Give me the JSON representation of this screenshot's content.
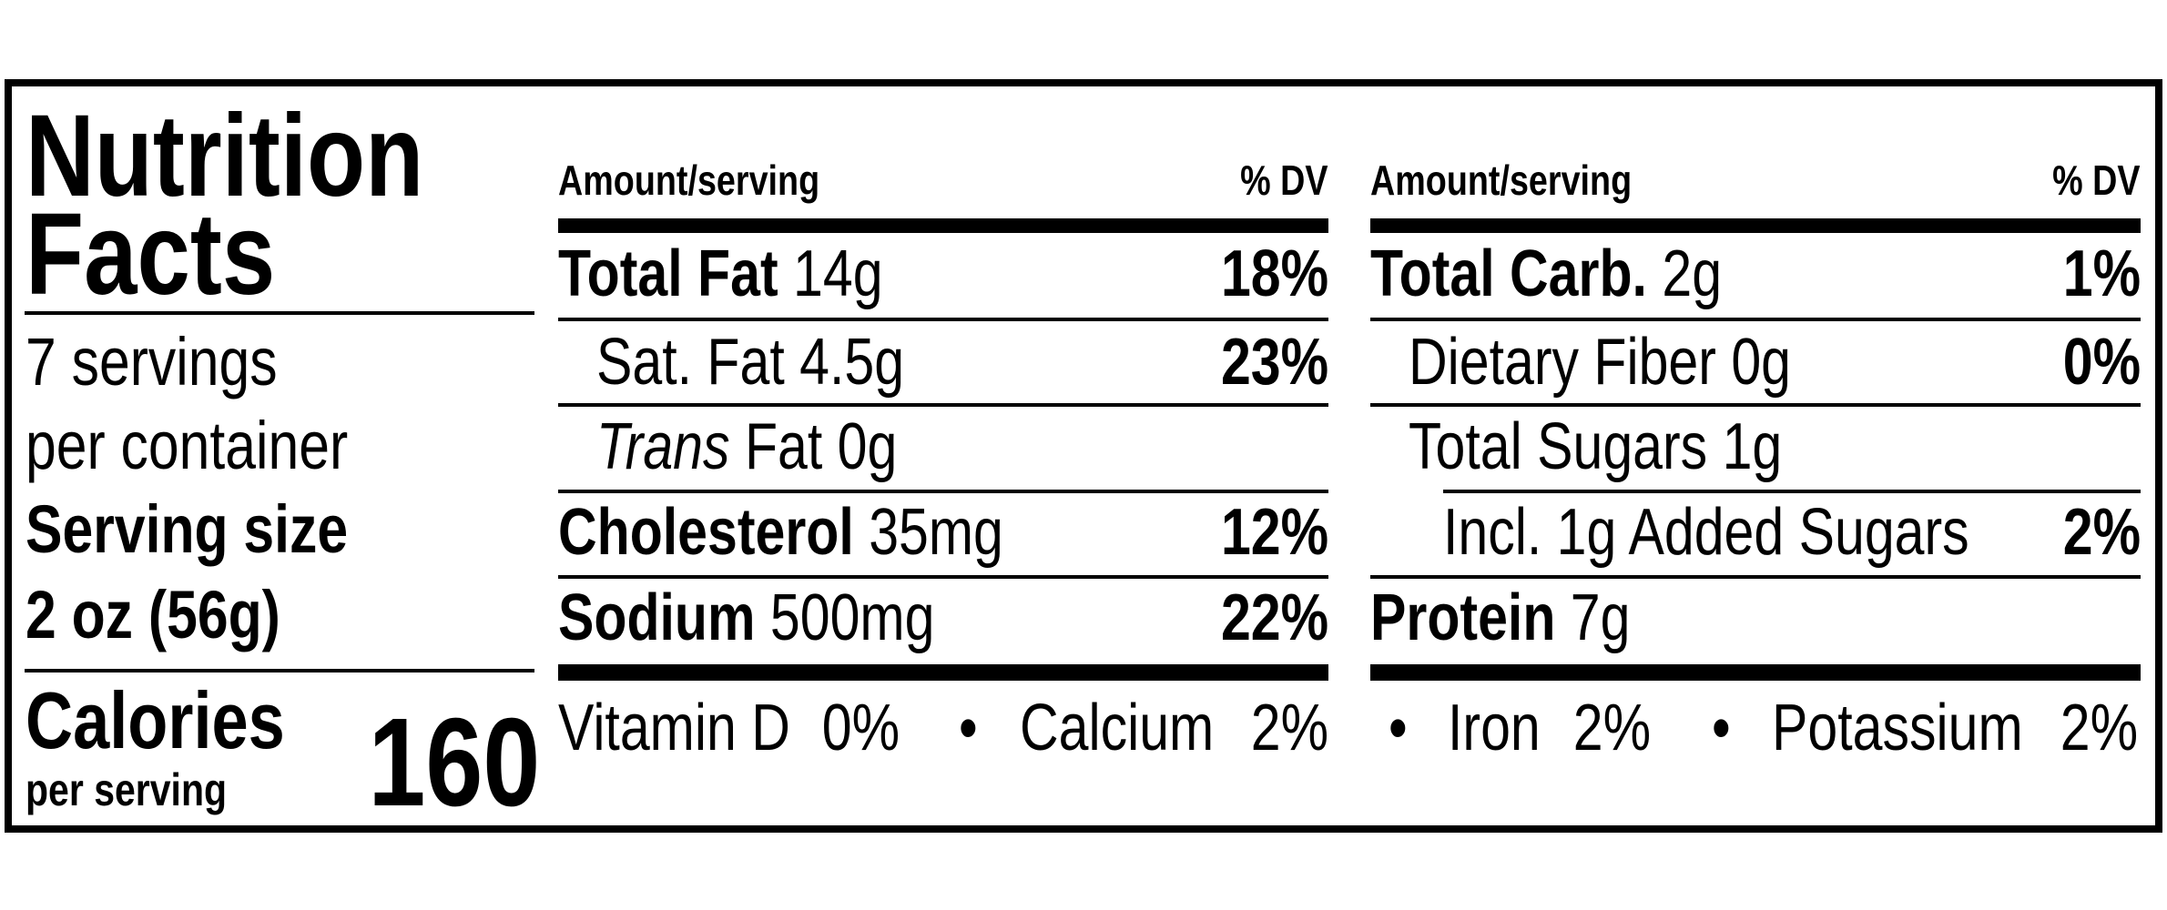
{
  "title": [
    "Nutrition",
    "Facts"
  ],
  "servings": [
    "7 servings",
    "per container"
  ],
  "serving_size": {
    "label": "Serving size",
    "value": "2 oz (56g)"
  },
  "calories": {
    "label": "Calories",
    "sublabel": "per serving",
    "value": 160
  },
  "columns": [
    {
      "header": {
        "amount": "Amount/serving",
        "dv": "% DV"
      },
      "rows": [
        {
          "name": "Total Fat",
          "amount": "14g",
          "dv": "18%",
          "level": 0
        },
        {
          "name": "Sat. Fat",
          "amount": "4.5g",
          "dv": "23%",
          "level": 1
        },
        {
          "italic": "Trans",
          "name": "Fat",
          "amount": "0g",
          "level": 1
        },
        {
          "name": "Cholesterol",
          "amount": "35mg",
          "dv": "12%",
          "level": 0
        },
        {
          "name": "Sodium",
          "amount": "500mg",
          "dv": "22%",
          "level": 0
        }
      ]
    },
    {
      "header": {
        "amount": "Amount/serving",
        "dv": "% DV"
      },
      "rows": [
        {
          "name": "Total Carb.",
          "amount": "2g",
          "dv": "1%",
          "level": 0
        },
        {
          "name": "Dietary Fiber",
          "amount": "0g",
          "dv": "0%",
          "level": 1
        },
        {
          "name": "Total Sugars",
          "amount": "1g",
          "level": 1
        },
        {
          "name": "Incl. 1g Added Sugars",
          "dv": "2%",
          "level": 2
        },
        {
          "name": "Protein",
          "amount": "7g",
          "level": 0
        }
      ]
    }
  ],
  "vitamins": [
    {
      "name": "Vitamin D",
      "dv": "0%"
    },
    {
      "name": "Calcium",
      "dv": "2%"
    },
    {
      "name": "Iron",
      "dv": "2%"
    },
    {
      "name": "Potassium",
      "dv": "2%"
    }
  ]
}
